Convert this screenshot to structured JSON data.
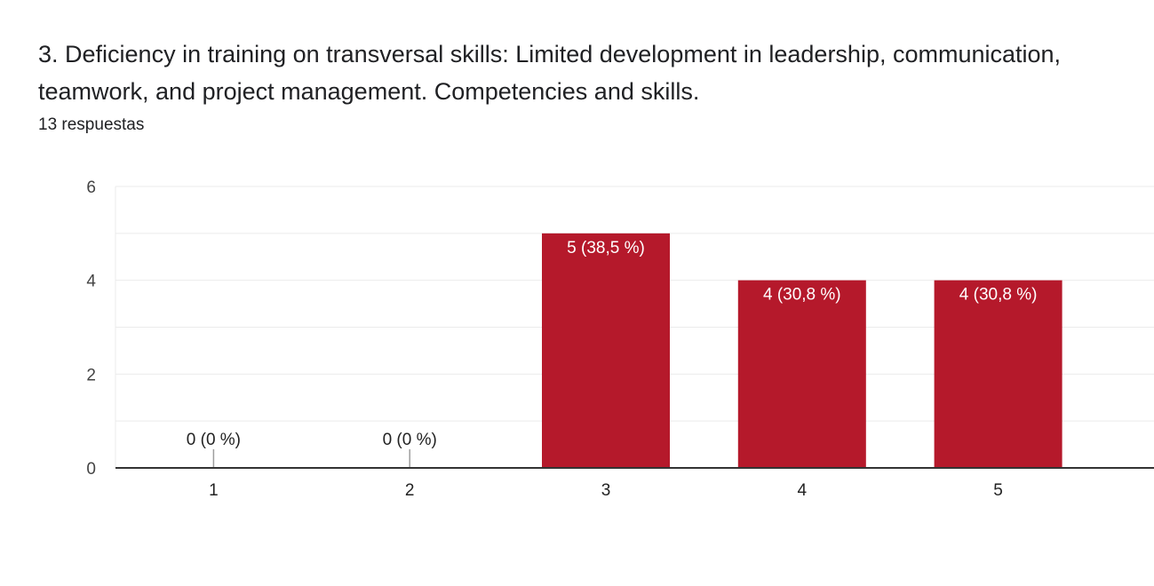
{
  "question": {
    "title": "3.  Deficiency in training on transversal skills: Limited development in leadership, communication, teamwork, and project management. Competencies and skills.",
    "response_count": "13 respuestas"
  },
  "colors": {
    "bar": "#b5192b",
    "grid": "#ebebeb",
    "axis": "#333333",
    "text": "#444444"
  },
  "chart_data": {
    "type": "bar",
    "categories": [
      "1",
      "2",
      "3",
      "4",
      "5"
    ],
    "values": [
      0,
      0,
      5,
      4,
      4
    ],
    "data_labels": [
      "0 (0 %)",
      "0 (0 %)",
      "5 (38,5 %)",
      "4 (30,8 %)",
      "4 (30,8 %)"
    ],
    "y_ticks": [
      "0",
      "2",
      "4",
      "6"
    ],
    "ylim": [
      0,
      6
    ],
    "grid": true,
    "legend": "none"
  }
}
